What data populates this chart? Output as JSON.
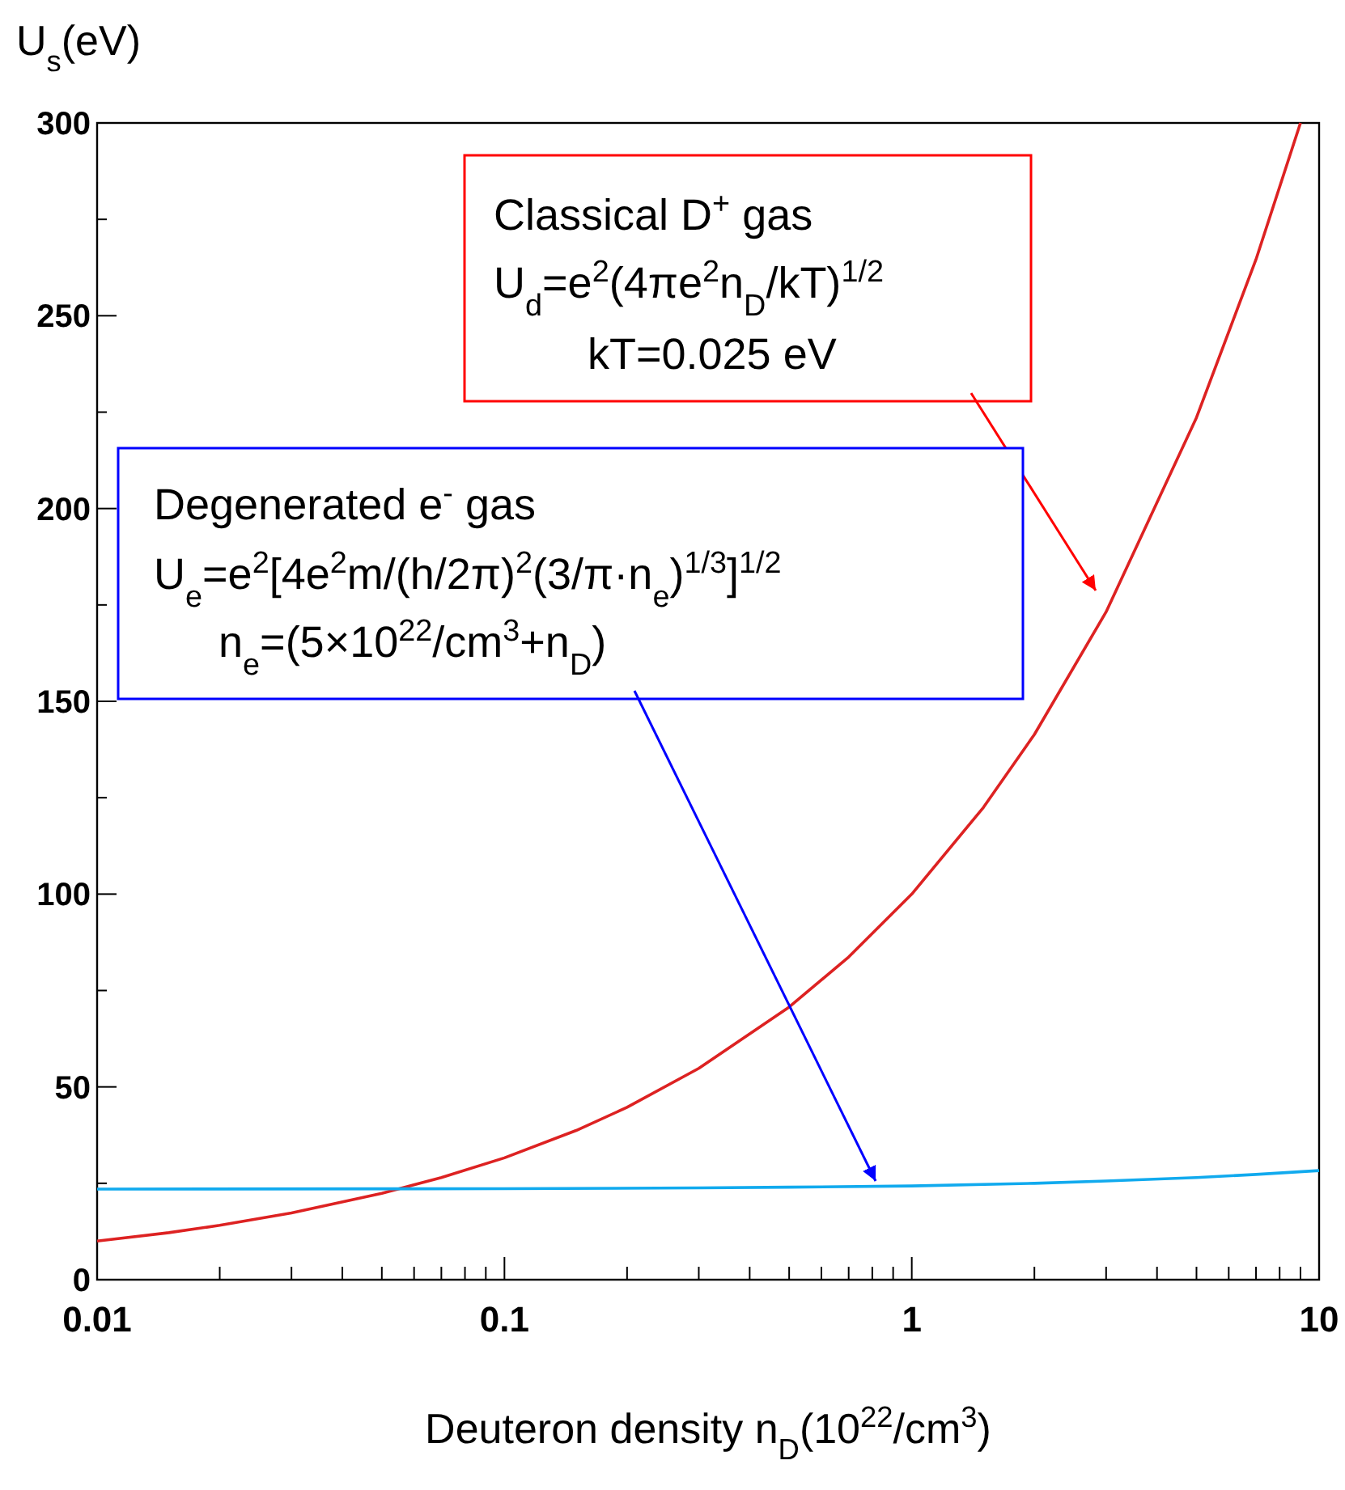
{
  "chart_data": {
    "type": "line",
    "xlabel": "Deuteron density n$_{D}$(10$^{22}$/cm$^{3}$)",
    "ylabel": "U$_{s}$(eV)",
    "log": "x",
    "xlim": [
      0.01,
      10
    ],
    "ylim": [
      0,
      300
    ],
    "xticks": [
      0.01,
      0.1,
      1,
      10,
      {
        "value": 0.02,
        "label": null
      },
      {
        "value": 0.03,
        "label": null
      },
      {
        "value": 0.04,
        "label": null
      },
      {
        "value": 0.05,
        "label": null
      },
      {
        "value": 0.06,
        "label": null
      },
      {
        "value": 0.07,
        "label": null
      },
      {
        "value": 0.08,
        "label": null
      },
      {
        "value": 0.09,
        "label": null
      },
      {
        "value": 0.2,
        "label": null
      },
      {
        "value": 0.3,
        "label": null
      },
      {
        "value": 0.4,
        "label": null
      },
      {
        "value": 0.5,
        "label": null
      },
      {
        "value": 0.6,
        "label": null
      },
      {
        "value": 0.7,
        "label": null
      },
      {
        "value": 0.8,
        "label": null
      },
      {
        "value": 0.9,
        "label": null
      },
      {
        "value": 2,
        "label": null
      },
      {
        "value": 3,
        "label": null
      },
      {
        "value": 4,
        "label": null
      },
      {
        "value": 5,
        "label": null
      },
      {
        "value": 6,
        "label": null
      },
      {
        "value": 7,
        "label": null
      },
      {
        "value": 8,
        "label": null
      },
      {
        "value": 9,
        "label": null
      }
    ],
    "yticks": [
      0,
      50,
      100,
      150,
      200,
      250,
      300,
      {
        "value": 25,
        "label": null
      },
      {
        "value": 75,
        "label": null
      },
      {
        "value": 125,
        "label": null
      },
      {
        "value": 175,
        "label": null
      },
      {
        "value": 225,
        "label": null
      },
      {
        "value": 275,
        "label": null
      }
    ],
    "grid": false,
    "marker": "none",
    "line_style": "solid",
    "series": [
      {
        "color": "#dd2222",
        "x": [
          0.01,
          0.015,
          0.02,
          0.03,
          0.05,
          0.07,
          0.1,
          0.15,
          0.2,
          0.3,
          0.5,
          0.7,
          1,
          1.5,
          2,
          3,
          5,
          7,
          9
        ],
        "values": [
          10,
          12.2,
          14.1,
          17.3,
          22.4,
          26.5,
          31.6,
          38.7,
          44.7,
          54.8,
          70.7,
          83.7,
          100,
          122.5,
          141.4,
          173.2,
          223.6,
          264.6,
          300
        ]
      },
      {
        "color": "#11aaee",
        "x": [
          0.01,
          0.1,
          0.3,
          0.5,
          1,
          2,
          3,
          5,
          7,
          10
        ],
        "values": [
          23.5,
          23.6,
          23.8,
          24,
          24.3,
          25,
          25.6,
          26.5,
          27.3,
          28.3
        ]
      }
    ],
    "annotations": [
      "Classical D$^{+}$ gas",
      "U$_{d}$=e$^{2}$(4πe$^{2}$n$_{D}$/kT)$^{1/2}$",
      "kT=0.025 eV",
      "Degenerated e$^{-}$ gas",
      "U$_{e}$=e$^{2}$[4e$^{2}$m/(h/2π)$^{2}$(3/π·n$_{e}$)$^{1/3}$]$^{1/2}$",
      "n$_{e}$=(5×10$^{22}$/cm$^{3}$+n$_{D}$)"
    ]
  }
}
